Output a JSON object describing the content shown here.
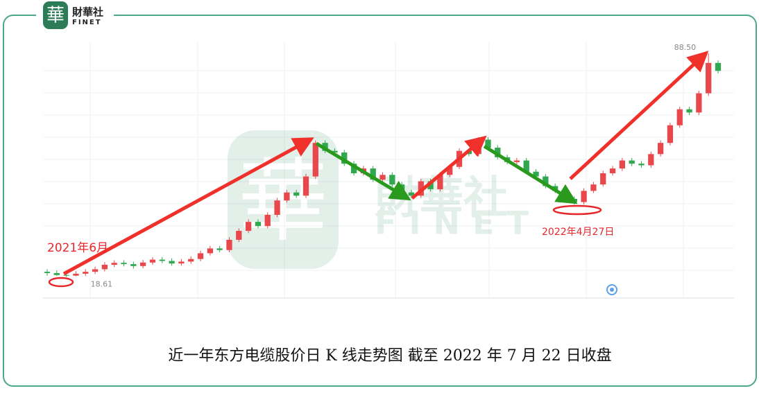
{
  "logo": {
    "glyph": "華",
    "name": "財華社",
    "latin": "FINET"
  },
  "watermark": {
    "glyph": "華",
    "name": "財華社",
    "latin": "FINET"
  },
  "chart_data": {
    "type": "candlestick",
    "caption": "近一年东方电缆股价日 K 线走势图  截至 2022 年 7 月 22 日收盘",
    "up_color": "#e8474c",
    "down_color": "#2fa84f",
    "ylim": [
      12,
      90
    ],
    "open": [
      20.2,
      19.8,
      19.2,
      19.0,
      19.6,
      20.2,
      21.0,
      22.4,
      23.0,
      22.6,
      22.0,
      23.1,
      24.0,
      23.6,
      22.8,
      23.4,
      24.2,
      26.0,
      27.5,
      27.0,
      30.2,
      33.0,
      35.8,
      34.5,
      38.0,
      42.5,
      45.0,
      44.0,
      50.0,
      60.5,
      58.0,
      57.5,
      54.0,
      51.0,
      52.5,
      49.0,
      50.5,
      47.5,
      45.0,
      44.0,
      48.5,
      46.0,
      50.5,
      53.0,
      58.0,
      57.0,
      61.5,
      59.0,
      56.0,
      54.5,
      55.0,
      51.5,
      50.0,
      47.0,
      45.5,
      43.0,
      42.0,
      45.5,
      47.5,
      51.0,
      52.5,
      55.0,
      54.0,
      53.5,
      57.0,
      60.5,
      66.0,
      71.0,
      70.0,
      76.0,
      85.5
    ],
    "high": [
      21.0,
      20.6,
      20.0,
      20.4,
      21.0,
      21.8,
      23.2,
      23.8,
      23.8,
      23.4,
      23.9,
      24.8,
      24.8,
      24.4,
      24.2,
      25.0,
      26.8,
      28.3,
      28.3,
      31.0,
      33.8,
      36.6,
      36.6,
      38.8,
      43.3,
      45.8,
      45.8,
      50.8,
      61.3,
      61.3,
      58.8,
      58.3,
      54.8,
      53.3,
      53.3,
      51.3,
      51.3,
      48.3,
      45.8,
      49.3,
      49.3,
      51.3,
      53.8,
      58.8,
      58.8,
      62.3,
      62.3,
      59.8,
      56.8,
      55.8,
      55.8,
      52.3,
      50.8,
      47.8,
      46.3,
      43.8,
      46.3,
      48.3,
      51.8,
      53.3,
      55.8,
      55.8,
      54.8,
      57.8,
      61.3,
      66.8,
      71.8,
      71.8,
      76.8,
      88.5,
      86.3
    ],
    "low": [
      19.0,
      18.9,
      18.61,
      18.8,
      18.9,
      19.5,
      20.3,
      21.7,
      21.9,
      21.2,
      21.3,
      22.4,
      22.9,
      22.1,
      22.1,
      22.7,
      23.5,
      25.3,
      26.3,
      26.3,
      29.5,
      32.3,
      33.8,
      33.8,
      37.3,
      41.8,
      43.3,
      43.3,
      49.3,
      57.3,
      56.8,
      53.3,
      50.3,
      50.3,
      48.3,
      48.3,
      46.8,
      44.3,
      43.3,
      43.3,
      45.3,
      45.3,
      49.8,
      52.3,
      56.3,
      56.3,
      58.3,
      55.3,
      53.8,
      53.8,
      50.8,
      49.3,
      46.3,
      44.8,
      42.3,
      41.2,
      41.2,
      44.8,
      46.8,
      50.3,
      51.7,
      53.2,
      52.7,
      52.7,
      56.2,
      59.7,
      65.2,
      69.2,
      69.2,
      75.2,
      82.2
    ],
    "close": [
      19.8,
      19.2,
      19.0,
      19.6,
      20.2,
      21.0,
      22.4,
      23.0,
      22.6,
      22.0,
      23.1,
      24.0,
      23.6,
      22.8,
      23.4,
      24.2,
      26.0,
      27.5,
      27.0,
      30.2,
      33.0,
      35.8,
      34.5,
      38.0,
      42.5,
      45.0,
      44.0,
      50.0,
      60.5,
      58.0,
      57.5,
      54.0,
      51.0,
      52.5,
      49.0,
      50.5,
      47.5,
      45.0,
      44.0,
      48.5,
      46.0,
      50.5,
      53.0,
      58.0,
      57.0,
      61.5,
      59.0,
      56.0,
      54.5,
      55.0,
      51.5,
      50.0,
      47.0,
      45.5,
      43.0,
      42.0,
      45.5,
      47.5,
      51.0,
      52.5,
      55.0,
      54.0,
      53.5,
      57.0,
      60.5,
      66.0,
      71.0,
      70.0,
      76.0,
      85.5,
      83.0
    ],
    "extreme_labels": [
      {
        "value": 88.5,
        "label": "88.50"
      },
      {
        "value": 18.61,
        "label": "18.61"
      }
    ],
    "date_annotations": [
      "2021年6月",
      "2022年4月27日"
    ]
  }
}
